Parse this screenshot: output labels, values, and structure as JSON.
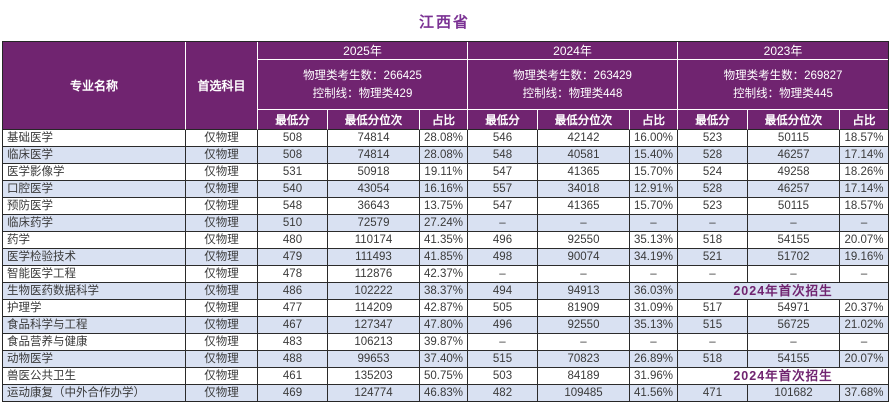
{
  "page": {
    "title": "江西省"
  },
  "colors": {
    "header_bg": "#702470",
    "header_text": "#ffffff",
    "title_text": "#7b3294",
    "row_alt_bg": "#d9e1f2",
    "body_text": "#3a3a3a",
    "special_text": "#702470",
    "grid_border": "#2b2b2b"
  },
  "table": {
    "header": {
      "major_col": "专业名称",
      "subject_col": "首选科目",
      "sub_columns": [
        "最低分",
        "最低分位次",
        "占比"
      ],
      "years": [
        {
          "label": "2025年",
          "candidates": "物理类考生数：266425",
          "control_line": "控制线：物理类429"
        },
        {
          "label": "2024年",
          "candidates": "物理类考生数：263429",
          "control_line": "控制线：物理类448"
        },
        {
          "label": "2023年",
          "candidates": "物理类考生数：269827",
          "control_line": "控制线：物理类445"
        }
      ]
    },
    "empty_marker": "–",
    "rows": [
      {
        "major": "基础医学",
        "subject": "仅物理",
        "y2025": [
          "508",
          "74814",
          "28.08%"
        ],
        "y2024": [
          "546",
          "42142",
          "16.00%"
        ],
        "y2023": [
          "523",
          "50115",
          "18.57%"
        ]
      },
      {
        "major": "临床医学",
        "subject": "仅物理",
        "y2025": [
          "508",
          "74814",
          "28.08%"
        ],
        "y2024": [
          "548",
          "40581",
          "15.40%"
        ],
        "y2023": [
          "528",
          "46257",
          "17.14%"
        ]
      },
      {
        "major": "医学影像学",
        "subject": "仅物理",
        "y2025": [
          "531",
          "50918",
          "19.11%"
        ],
        "y2024": [
          "547",
          "41365",
          "15.70%"
        ],
        "y2023": [
          "524",
          "49258",
          "18.26%"
        ]
      },
      {
        "major": "口腔医学",
        "subject": "仅物理",
        "y2025": [
          "540",
          "43054",
          "16.16%"
        ],
        "y2024": [
          "557",
          "34018",
          "12.91%"
        ],
        "y2023": [
          "528",
          "46257",
          "17.14%"
        ]
      },
      {
        "major": "预防医学",
        "subject": "仅物理",
        "y2025": [
          "548",
          "36643",
          "13.75%"
        ],
        "y2024": [
          "547",
          "41365",
          "15.70%"
        ],
        "y2023": [
          "523",
          "50115",
          "18.57%"
        ]
      },
      {
        "major": "临床药学",
        "subject": "仅物理",
        "y2025": [
          "510",
          "72579",
          "27.24%"
        ],
        "y2024": [
          "–",
          "–",
          "–"
        ],
        "y2023": [
          "–",
          "–",
          "–"
        ]
      },
      {
        "major": "药学",
        "subject": "仅物理",
        "y2025": [
          "480",
          "110174",
          "41.35%"
        ],
        "y2024": [
          "496",
          "92550",
          "35.13%"
        ],
        "y2023": [
          "518",
          "54155",
          "20.07%"
        ]
      },
      {
        "major": "医学检验技术",
        "subject": "仅物理",
        "y2025": [
          "479",
          "111493",
          "41.85%"
        ],
        "y2024": [
          "498",
          "90074",
          "34.19%"
        ],
        "y2023": [
          "521",
          "51702",
          "19.16%"
        ]
      },
      {
        "major": "智能医学工程",
        "subject": "仅物理",
        "y2025": [
          "478",
          "112876",
          "42.37%"
        ],
        "y2024": [
          "–",
          "–",
          "–"
        ],
        "y2023": [
          "–",
          "–",
          "–"
        ]
      },
      {
        "major": "生物医药数据科学",
        "subject": "仅物理",
        "y2025": [
          "486",
          "102222",
          "38.37%"
        ],
        "y2024": [
          "494",
          "94913",
          "36.03%"
        ],
        "y2023": {
          "merged": true,
          "text": "2024年首次招生"
        }
      },
      {
        "major": "护理学",
        "subject": "仅物理",
        "y2025": [
          "477",
          "114209",
          "42.87%"
        ],
        "y2024": [
          "505",
          "81909",
          "31.09%"
        ],
        "y2023": [
          "517",
          "54971",
          "20.37%"
        ]
      },
      {
        "major": "食品科学与工程",
        "subject": "仅物理",
        "y2025": [
          "467",
          "127347",
          "47.80%"
        ],
        "y2024": [
          "496",
          "92550",
          "35.13%"
        ],
        "y2023": [
          "515",
          "56725",
          "21.02%"
        ]
      },
      {
        "major": "食品营养与健康",
        "subject": "仅物理",
        "y2025": [
          "483",
          "106213",
          "39.87%"
        ],
        "y2024": [
          "–",
          "–",
          "–"
        ],
        "y2023": [
          "–",
          "–",
          "–"
        ]
      },
      {
        "major": "动物医学",
        "subject": "仅物理",
        "y2025": [
          "488",
          "99653",
          "37.40%"
        ],
        "y2024": [
          "515",
          "70823",
          "26.89%"
        ],
        "y2023": [
          "518",
          "54155",
          "20.07%"
        ]
      },
      {
        "major": "兽医公共卫生",
        "subject": "仅物理",
        "y2025": [
          "461",
          "135203",
          "50.75%"
        ],
        "y2024": [
          "503",
          "84189",
          "31.96%"
        ],
        "y2023": {
          "merged": true,
          "text": "2024年首次招生"
        }
      },
      {
        "major": "运动康复（中外合作办学）",
        "subject": "仅物理",
        "y2025": [
          "469",
          "124774",
          "46.83%"
        ],
        "y2024": [
          "482",
          "109485",
          "41.56%"
        ],
        "y2023": [
          "471",
          "101682",
          "37.68%"
        ]
      }
    ]
  }
}
